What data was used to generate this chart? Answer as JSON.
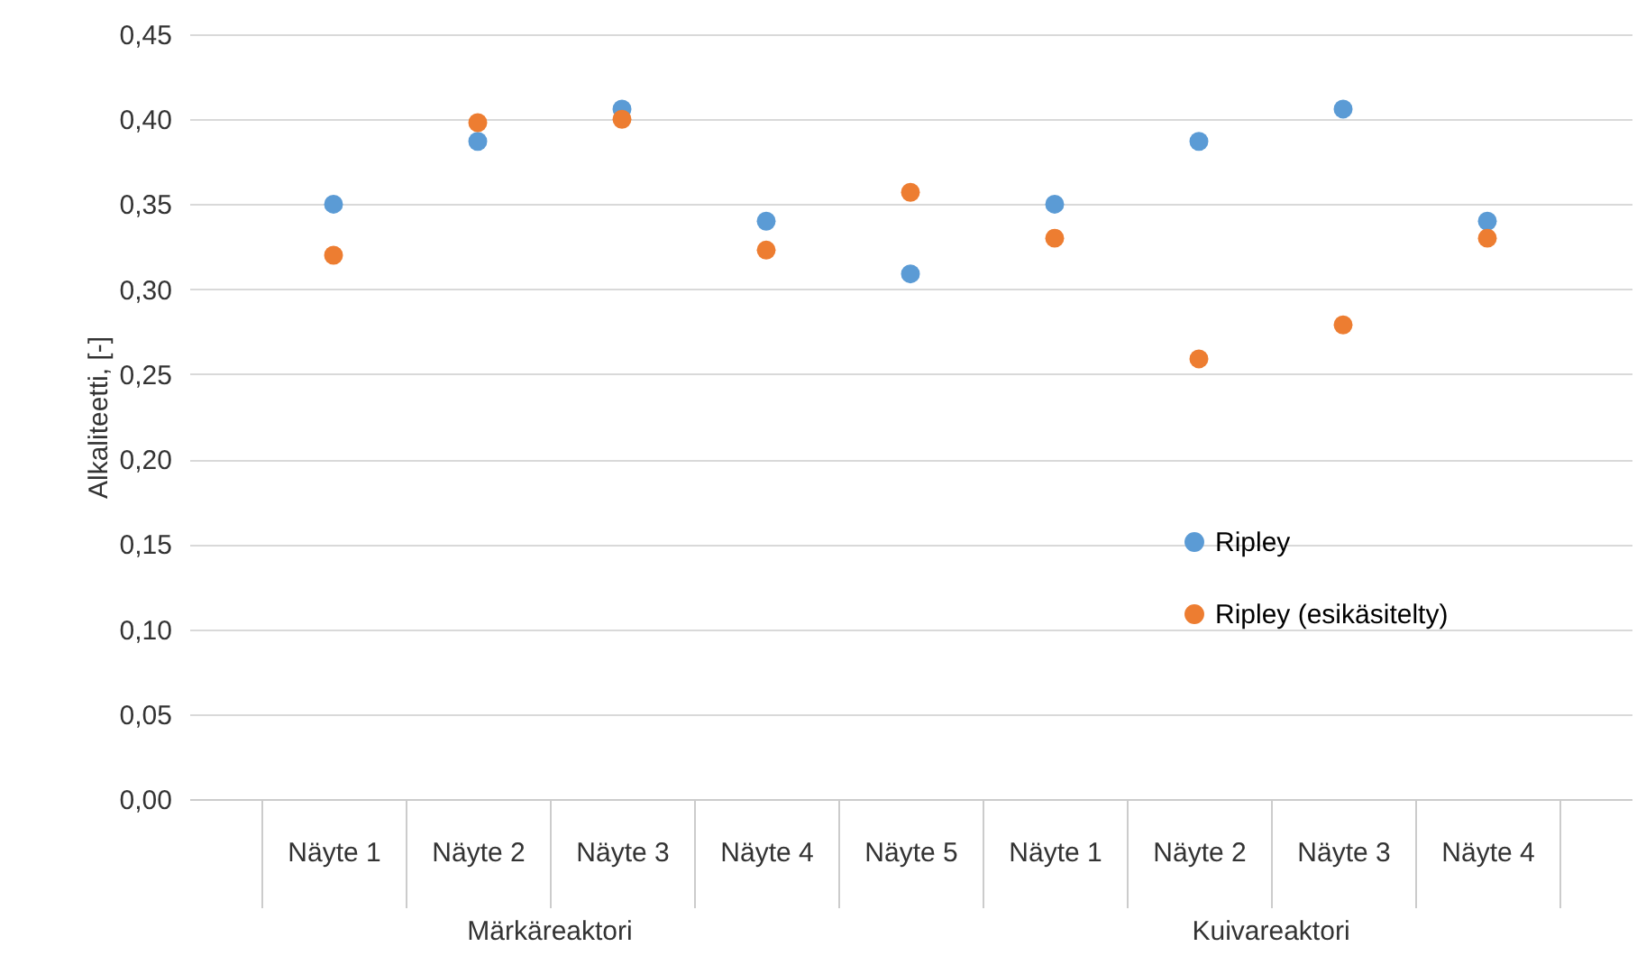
{
  "chart_data": {
    "type": "scatter",
    "ylabel": "Alkaliteetti, [-]",
    "categories": [
      "Näyte 1",
      "Näyte 2",
      "Näyte 3",
      "Näyte 4",
      "Näyte 5",
      "Näyte 1",
      "Näyte 2",
      "Näyte 3",
      "Näyte 4"
    ],
    "series": [
      {
        "name": "Ripley",
        "color": "#5b9bd5",
        "values": [
          0.35,
          0.387,
          0.406,
          0.34,
          0.309,
          0.35,
          0.387,
          0.406,
          0.34
        ]
      },
      {
        "name": "Ripley (esikäsitelty)",
        "color": "#ed7d31",
        "values": [
          0.32,
          0.398,
          0.4,
          0.323,
          0.357,
          0.33,
          0.259,
          0.279,
          0.33
        ]
      }
    ],
    "ylim": [
      0,
      0.45
    ],
    "yticks": [
      {
        "value": 0,
        "label": "0,00"
      },
      {
        "value": 0.05,
        "label": "0,05"
      },
      {
        "value": 0.1,
        "label": "0,10"
      },
      {
        "value": 0.15,
        "label": "0,15"
      },
      {
        "value": 0.2,
        "label": "0,20"
      },
      {
        "value": 0.25,
        "label": "0,25"
      },
      {
        "value": 0.3,
        "label": "0,30"
      },
      {
        "value": 0.35,
        "label": "0,35"
      },
      {
        "value": 0.4,
        "label": "0,40"
      },
      {
        "value": 0.45,
        "label": "0,45"
      }
    ],
    "annotations": [
      "Märkäreaktori",
      "Kuivareaktori"
    ],
    "grid": "y",
    "legend": "bottom right",
    "marker": "circle"
  }
}
